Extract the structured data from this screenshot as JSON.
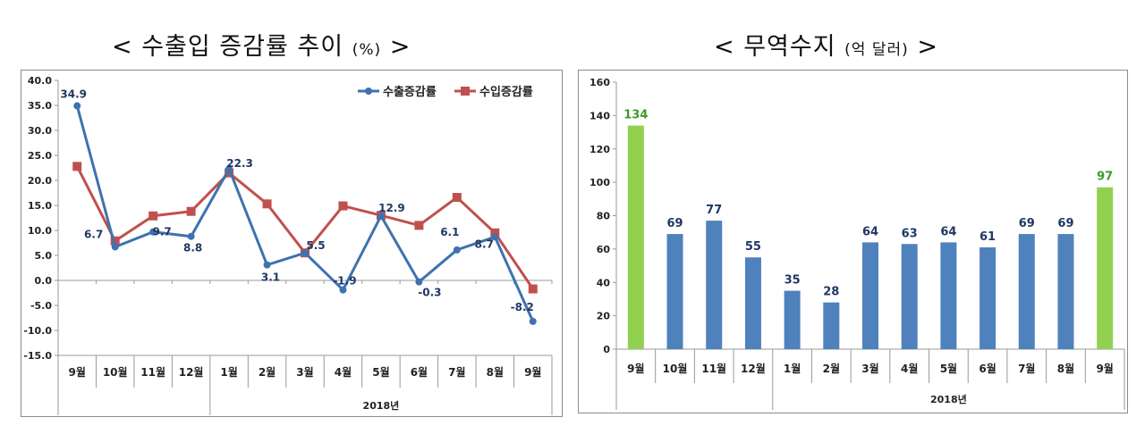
{
  "titles": {
    "left_main": "< 수출입 증감률 추이",
    "left_unit": "(%)",
    "left_end": ">",
    "right_main": "< 무역수지",
    "right_unit": "(억 달러)",
    "right_end": ">"
  },
  "chart_data": [
    {
      "type": "line",
      "title": "< 수출입 증감률 추이 (%) >",
      "categories": [
        "9월",
        "10월",
        "11월",
        "12월",
        "1월",
        "2월",
        "3월",
        "4월",
        "5월",
        "6월",
        "7월",
        "8월",
        "9월"
      ],
      "group_label": "2018년",
      "series": [
        {
          "name": "수출증감률",
          "color": "#3e72b0",
          "values": [
            34.9,
            6.7,
            9.7,
            8.8,
            22.3,
            3.1,
            5.5,
            -1.9,
            12.9,
            -0.3,
            6.1,
            8.7,
            -8.2
          ],
          "labels": [
            "34.9",
            "6.7",
            "9.7",
            "8.8",
            "22.3",
            "3.1",
            "5.5",
            "-1.9",
            "12.9",
            "-0.3",
            "6.1",
            "8.7",
            "-8.2"
          ]
        },
        {
          "name": "수입증감률",
          "color": "#c0504d",
          "values": [
            22.8,
            7.9,
            12.9,
            13.8,
            21.5,
            15.3,
            5.5,
            14.9,
            13.0,
            11.0,
            16.6,
            9.5,
            -1.7
          ]
        }
      ],
      "ylim": [
        -15,
        40
      ],
      "yticks": [
        "-15.0",
        "-10.0",
        "-5.0",
        "0.0",
        "5.0",
        "10.0",
        "15.0",
        "20.0",
        "25.0",
        "30.0",
        "35.0",
        "40.0"
      ],
      "legend": "top-right",
      "grid": false
    },
    {
      "type": "bar",
      "title": "< 무역수지 (억 달러) >",
      "categories": [
        "9월",
        "10월",
        "11월",
        "12월",
        "1월",
        "2월",
        "3월",
        "4월",
        "5월",
        "6월",
        "7월",
        "8월",
        "9월"
      ],
      "group_label": "2018년",
      "values": [
        134,
        69,
        77,
        55,
        35,
        28,
        64,
        63,
        64,
        61,
        69,
        69,
        97
      ],
      "highlight": [
        true,
        false,
        false,
        false,
        false,
        false,
        false,
        false,
        false,
        false,
        false,
        false,
        true
      ],
      "colors": {
        "normal": "#4f81bd",
        "highlight": "#92d050",
        "normal_label": "#1f3864",
        "highlight_label": "#3c9a27"
      },
      "ylim": [
        0,
        160
      ],
      "yticks": [
        "0",
        "20",
        "40",
        "60",
        "80",
        "100",
        "120",
        "140",
        "160"
      ],
      "grid": false
    }
  ]
}
